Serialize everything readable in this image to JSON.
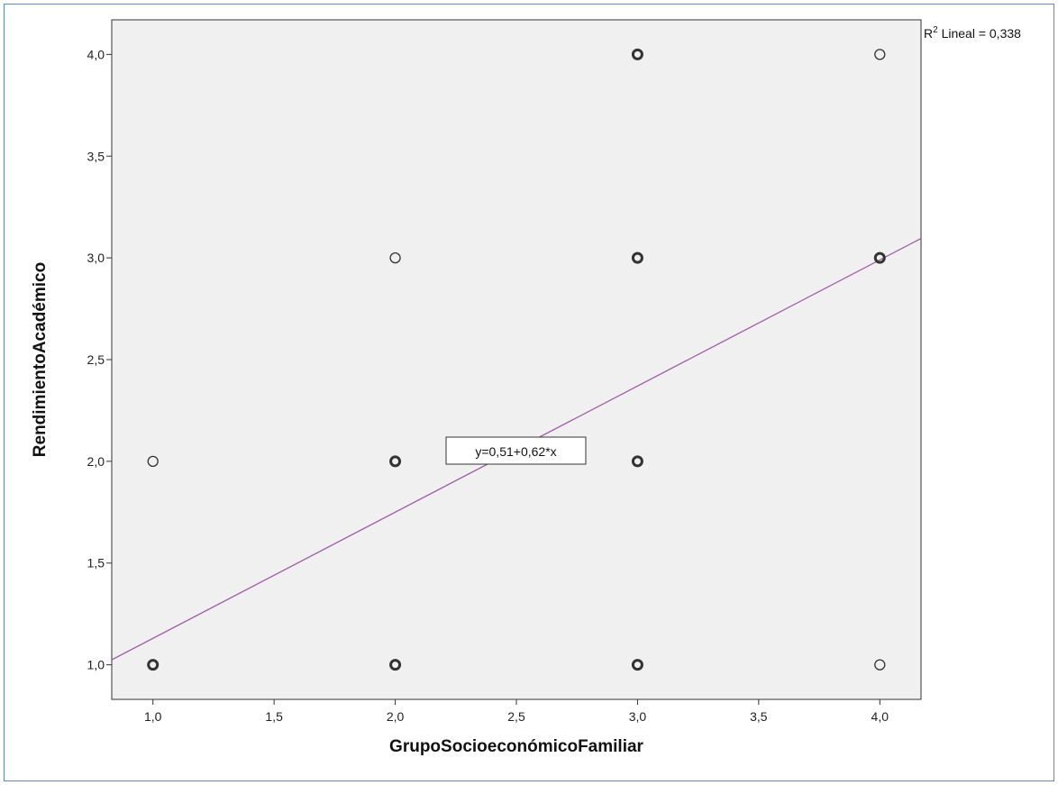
{
  "chart_data": {
    "type": "scatter",
    "xlabel": "GrupoSocioeconómicoFamiliar",
    "ylabel": "RendimientoAcadémico",
    "xlim": [
      0.83,
      4.17
    ],
    "ylim": [
      0.83,
      4.17
    ],
    "x_ticks": [
      1.0,
      1.5,
      2.0,
      2.5,
      3.0,
      3.5,
      4.0
    ],
    "x_tick_labels": [
      "1,0",
      "1,5",
      "2,0",
      "2,5",
      "3,0",
      "3,5",
      "4,0"
    ],
    "y_ticks": [
      1.0,
      1.5,
      2.0,
      2.5,
      3.0,
      3.5,
      4.0
    ],
    "y_tick_labels": [
      "1,0",
      "1,5",
      "2,0",
      "2,5",
      "3,0",
      "3,5",
      "4,0"
    ],
    "grid": false,
    "background_color": "#f0f0f0",
    "marker_color": "#333333",
    "points": [
      {
        "x": 1,
        "y": 1,
        "bold": true
      },
      {
        "x": 1,
        "y": 2,
        "bold": false
      },
      {
        "x": 2,
        "y": 1,
        "bold": true
      },
      {
        "x": 2,
        "y": 2,
        "bold": true
      },
      {
        "x": 2,
        "y": 3,
        "bold": false
      },
      {
        "x": 3,
        "y": 1,
        "bold": true
      },
      {
        "x": 3,
        "y": 2,
        "bold": true
      },
      {
        "x": 3,
        "y": 3,
        "bold": true
      },
      {
        "x": 3,
        "y": 4,
        "bold": true
      },
      {
        "x": 4,
        "y": 1,
        "bold": false
      },
      {
        "x": 4,
        "y": 3,
        "bold": true
      },
      {
        "x": 4,
        "y": 4,
        "bold": false
      }
    ],
    "fit_line": {
      "intercept": 0.51,
      "slope": 0.62,
      "color": "#a05aa8",
      "equation_label": "y=0,51+0,62*x"
    },
    "r2_label": {
      "prefix": "R",
      "superscript": "2",
      "text": " Lineal = 0,338"
    }
  }
}
